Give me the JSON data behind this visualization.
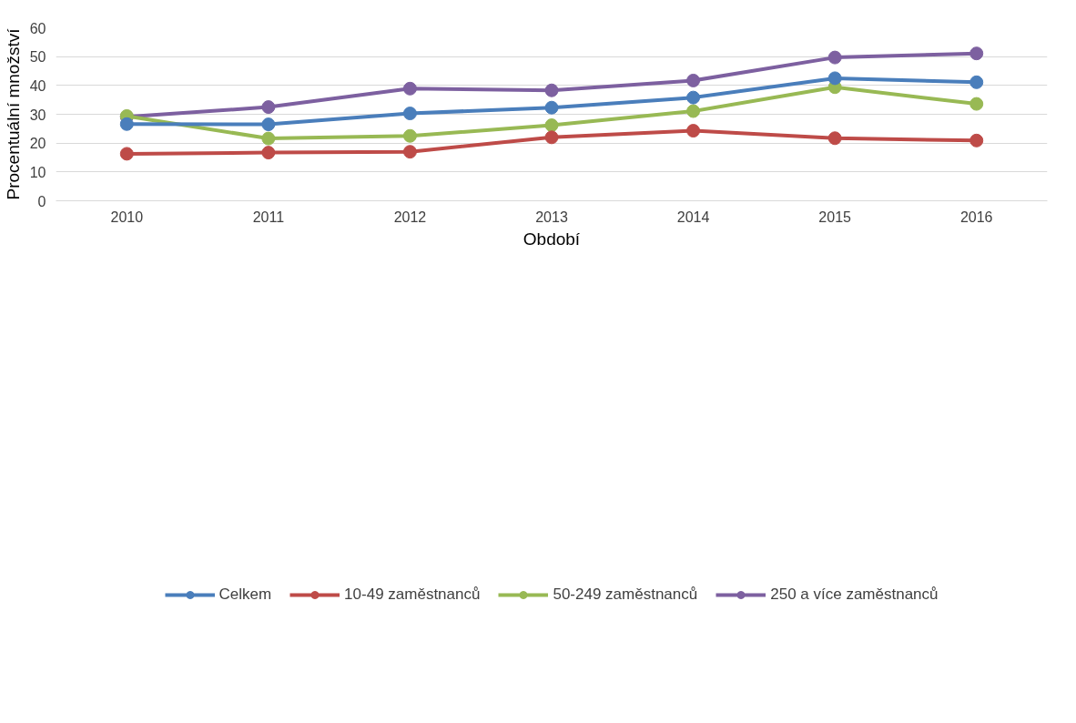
{
  "chart_data": {
    "type": "line",
    "xlabel": "Období",
    "ylabel": "Procentuální množství",
    "categories": [
      "2010",
      "2011",
      "2012",
      "2013",
      "2014",
      "2015",
      "2016"
    ],
    "ylim": [
      0,
      60
    ],
    "yticks": [
      0,
      10,
      20,
      30,
      40,
      50,
      60
    ],
    "grid": "y",
    "legend": "bottom",
    "marker": "circle",
    "line_style": "solid",
    "series": [
      {
        "name": "Celkem",
        "color": "#4a7ebb",
        "values": [
          26.6,
          26.5,
          30.3,
          32.3,
          35.8,
          42.5,
          41.1
        ]
      },
      {
        "name": "10-49 zaměstnanců",
        "color": "#be4b48",
        "values": [
          16.3,
          16.7,
          17.0,
          22.0,
          24.3,
          21.7,
          20.9
        ]
      },
      {
        "name": "50-249 zaměstnanců",
        "color": "#98b954",
        "values": [
          29.4,
          21.6,
          22.5,
          26.2,
          31.1,
          39.4,
          33.6
        ]
      },
      {
        "name": "250 a více zaměstnanců",
        "color": "#7d60a0",
        "values": [
          29.1,
          32.5,
          38.9,
          38.3,
          41.7,
          49.7,
          51.1
        ]
      }
    ]
  }
}
